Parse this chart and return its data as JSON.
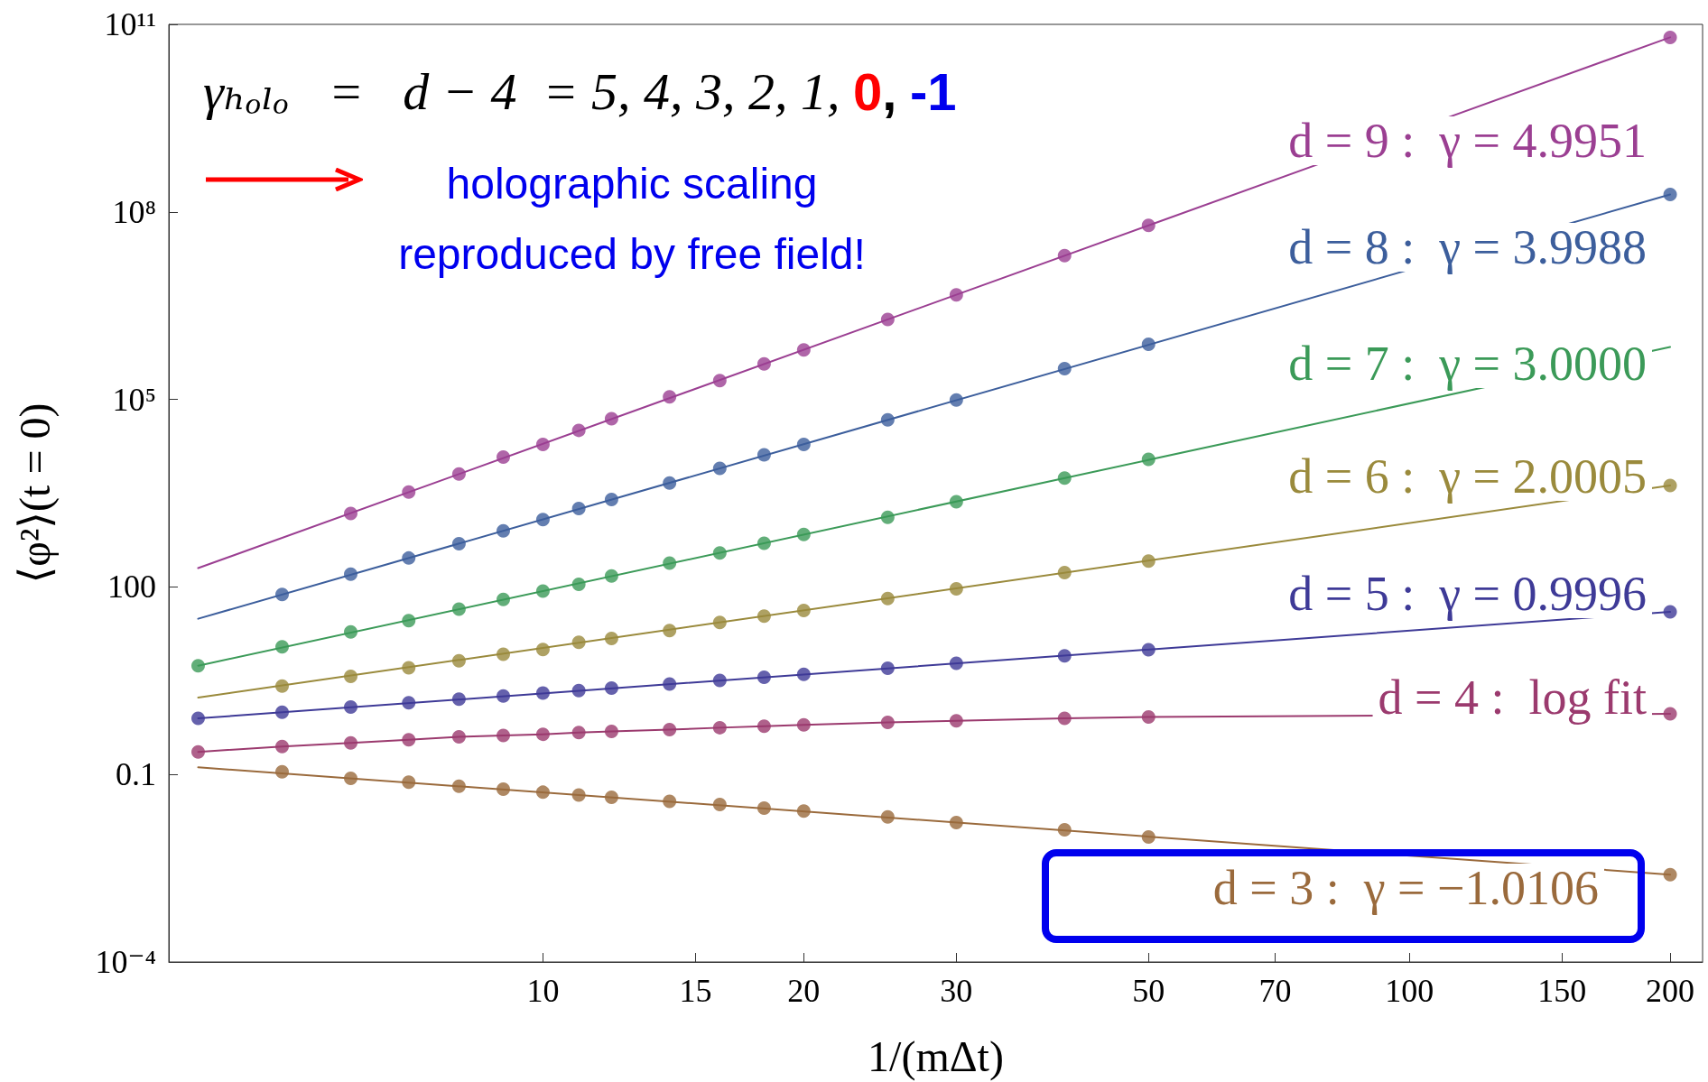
{
  "chart_data": {
    "type": "scatter",
    "xlabel": "1/(mΔt)",
    "ylabel": "⟨φ²⟩(t = 0)",
    "annotations": [
      "γₕₒₗₒ   =   d − 4  = 5, 4, 3, 2, 1, 0, -1",
      "holographic scaling\nreproduced by free field!"
    ],
    "log": "xy",
    "xlim": [
      3.7,
      218
    ],
    "ylim": [
      0.0001,
      100000000000
    ],
    "xticks": [
      10,
      15,
      20,
      30,
      50,
      70,
      100,
      150,
      200
    ],
    "yticks": [
      {
        "value": 0.0001,
        "label": "10⁻⁴"
      },
      0.1,
      100,
      {
        "value": 100000,
        "label": "10⁵"
      },
      {
        "value": 100000000,
        "label": "10⁸"
      },
      {
        "value": 100000000000,
        "label": "10¹¹"
      }
    ],
    "marker": "circle",
    "line_style": "solid",
    "series": [
      {
        "name": "d = 9 :  γ = 4.9951",
        "color": "#9b3f92",
        "x": [
          6,
          7,
          8,
          9,
          10,
          11,
          12,
          14,
          16,
          18,
          20,
          25,
          30,
          40,
          50,
          200
        ],
        "values": [
          1500,
          3300,
          6400,
          12000,
          19000,
          32000,
          49000,
          110000,
          200000,
          370000,
          620000,
          1900000,
          4700000,
          20000000,
          61000000,
          62000000000
        ]
      },
      {
        "type": "line",
        "marker": "none",
        "color": "#9b3f92",
        "x": [
          4,
          200
        ],
        "values": [
          200,
          62000000000
        ]
      },
      {
        "name": "d = 8 :  γ = 3.9988",
        "color": "#3c5e9c",
        "x": [
          5,
          6,
          7,
          8,
          9,
          10,
          11,
          12,
          14,
          16,
          18,
          20,
          25,
          30,
          40,
          50,
          200
        ],
        "values": [
          76,
          160,
          290,
          490,
          790,
          1200,
          1800,
          2500,
          4600,
          7900,
          13000,
          19000,
          47000,
          98000,
          310000,
          760000,
          190000000
        ]
      },
      {
        "type": "line",
        "marker": "none",
        "color": "#3c5e9c",
        "x": [
          4,
          200
        ],
        "values": [
          31,
          190000000
        ]
      },
      {
        "name": "d = 7 :  γ = 3.0000",
        "color": "#3b9a58",
        "x": [
          4,
          5,
          6,
          7,
          8,
          9,
          10,
          11,
          12,
          14,
          16,
          18,
          20,
          25,
          30,
          40,
          50
        ],
        "values": [
          5.5,
          11,
          19,
          29,
          44,
          63,
          86,
          110,
          150,
          240,
          350,
          500,
          690,
          1300,
          2300,
          5500,
          11000
        ]
      },
      {
        "type": "line",
        "marker": "none",
        "color": "#3b9a58",
        "x": [
          4,
          200
        ],
        "values": [
          5.5,
          690000
        ]
      },
      {
        "name": "d = 6 :  γ = 2.0005",
        "color": "#9a8a3c",
        "x": [
          5,
          6,
          7,
          8,
          9,
          10,
          11,
          12,
          14,
          16,
          18,
          20,
          25,
          30,
          40,
          50,
          200
        ],
        "values": [
          2.6,
          3.7,
          5.1,
          6.6,
          8.4,
          10,
          13,
          15,
          20,
          27,
          34,
          42,
          65,
          93,
          170,
          260,
          4200
        ]
      },
      {
        "type": "line",
        "marker": "none",
        "color": "#9a8a3c",
        "x": [
          4,
          200
        ],
        "values": [
          1.7,
          4200
        ]
      },
      {
        "name": "d = 5 :  γ = 0.9996",
        "color": "#3e3a97",
        "x": [
          4,
          5,
          6,
          7,
          8,
          9,
          10,
          11,
          12,
          14,
          16,
          18,
          20,
          25,
          30,
          40,
          50,
          200
        ],
        "values": [
          0.79,
          0.99,
          1.2,
          1.4,
          1.6,
          1.8,
          2.0,
          2.2,
          2.4,
          2.8,
          3.2,
          3.6,
          4.0,
          5.0,
          6.0,
          7.9,
          9.9,
          40
        ]
      },
      {
        "type": "line",
        "marker": "none",
        "color": "#3e3a97",
        "x": [
          4,
          200
        ],
        "values": [
          0.79,
          40
        ]
      },
      {
        "name": "d = 4 :  log fit",
        "color": "#9b3a6e",
        "x": [
          4,
          5,
          6,
          7,
          8,
          9,
          10,
          11,
          12,
          14,
          16,
          18,
          20,
          25,
          30,
          40,
          50,
          200
        ],
        "values": [
          0.23,
          0.28,
          0.32,
          0.36,
          0.4,
          0.42,
          0.44,
          0.47,
          0.49,
          0.52,
          0.56,
          0.59,
          0.62,
          0.68,
          0.72,
          0.79,
          0.83,
          0.93
        ]
      },
      {
        "type": "line",
        "marker": "none",
        "color": "#9b3a6e",
        "x": [
          4,
          5,
          6,
          7,
          8,
          9,
          10,
          11,
          12,
          14,
          16,
          18,
          20,
          25,
          30,
          40,
          50,
          200
        ],
        "values": [
          0.23,
          0.28,
          0.32,
          0.36,
          0.4,
          0.42,
          0.44,
          0.47,
          0.49,
          0.52,
          0.56,
          0.59,
          0.62,
          0.68,
          0.72,
          0.79,
          0.83,
          0.93
        ]
      },
      {
        "name": "d = 3 :  γ = −1.0106",
        "color": "#9a6a3c",
        "x": [
          5,
          6,
          7,
          8,
          9,
          10,
          11,
          12,
          14,
          16,
          18,
          20,
          25,
          30,
          40,
          50,
          200
        ],
        "values": [
          0.11,
          0.087,
          0.075,
          0.065,
          0.058,
          0.052,
          0.047,
          0.043,
          0.037,
          0.033,
          0.029,
          0.026,
          0.021,
          0.017,
          0.013,
          0.01,
          0.0025
        ]
      },
      {
        "type": "line",
        "marker": "none",
        "color": "#9a6a3c",
        "x": [
          4,
          200
        ],
        "values": [
          0.13,
          0.0025
        ]
      }
    ]
  }
}
